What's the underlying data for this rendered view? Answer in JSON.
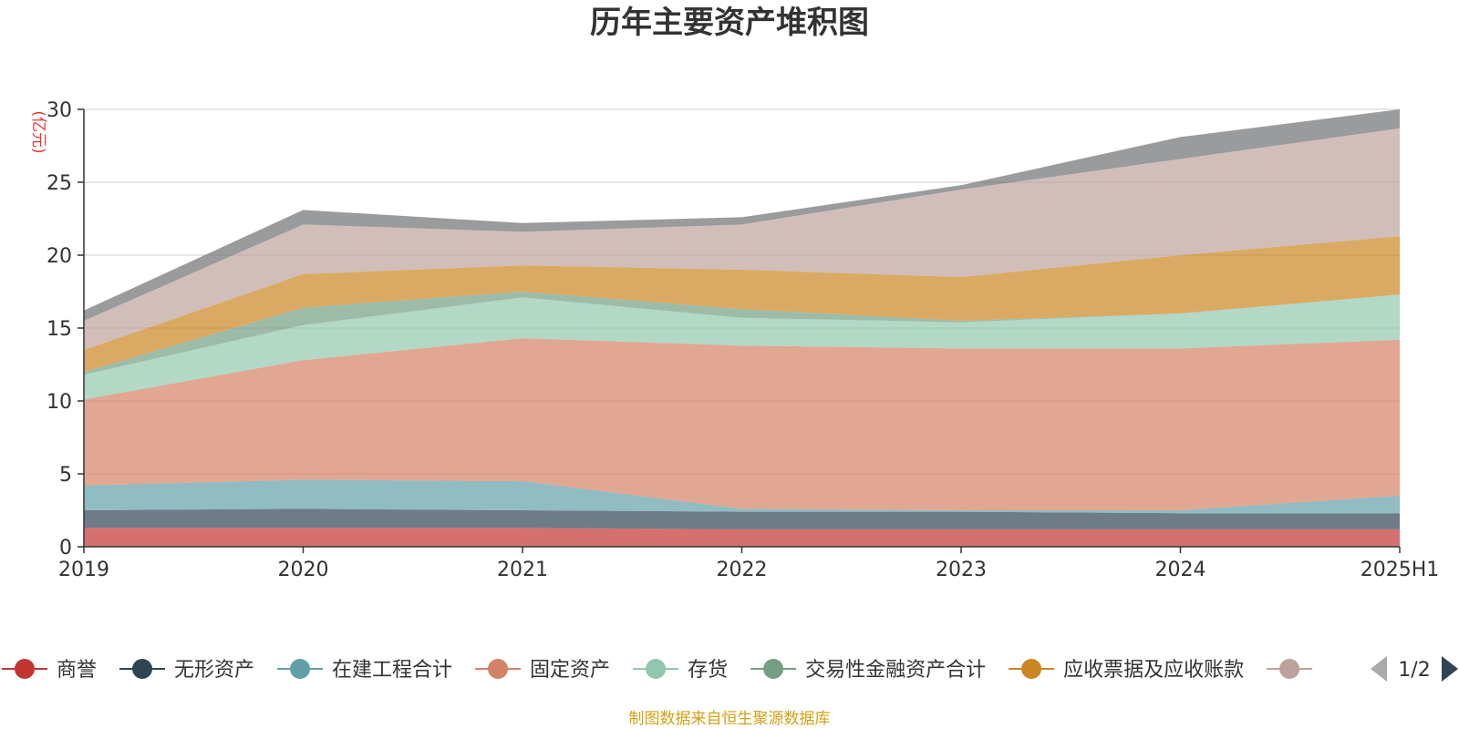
{
  "chart_data": {
    "type": "area",
    "stacked": true,
    "title": "历年主要资产堆积图",
    "unit": "(亿元)",
    "categories": [
      "2019",
      "2020",
      "2021",
      "2022",
      "2023",
      "2024",
      "2025H1"
    ],
    "ylim": [
      0,
      30
    ],
    "yticks": [
      0,
      5,
      10,
      15,
      20,
      25,
      30
    ],
    "grid": true,
    "legend_position": "bottom",
    "series": [
      {
        "name": "商誉",
        "color": "#c23531",
        "values": [
          1.3,
          1.3,
          1.3,
          1.2,
          1.2,
          1.2,
          1.2
        ]
      },
      {
        "name": "无形资产",
        "color": "#2f4554",
        "values": [
          1.2,
          1.3,
          1.2,
          1.2,
          1.2,
          1.1,
          1.1
        ]
      },
      {
        "name": "在建工程合计",
        "color": "#61a0a8",
        "values": [
          1.7,
          2.0,
          2.0,
          0.2,
          0.1,
          0.2,
          1.2
        ]
      },
      {
        "name": "固定资产",
        "color": "#d48265",
        "values": [
          5.9,
          8.2,
          9.8,
          11.2,
          11.1,
          11.1,
          10.7
        ]
      },
      {
        "name": "存货",
        "color": "#91c7ae",
        "values": [
          1.7,
          2.4,
          2.8,
          1.9,
          1.8,
          2.4,
          3.1
        ]
      },
      {
        "name": "交易性金融资产合计",
        "color": "#749f83",
        "values": [
          0.2,
          1.2,
          0.4,
          0.6,
          0.1,
          0.0,
          0.0
        ]
      },
      {
        "name": "应收票据及应收账款",
        "color": "#ca8622",
        "values": [
          1.5,
          2.3,
          1.8,
          2.7,
          3.0,
          4.0,
          4.0
        ]
      },
      {
        "name": "",
        "color": "#bda29a",
        "values": [
          2.0,
          3.4,
          2.3,
          3.1,
          6.0,
          6.6,
          7.4
        ]
      },
      {
        "name": "",
        "color": "#6e7074",
        "values": [
          0.7,
          1.0,
          0.6,
          0.5,
          0.3,
          1.5,
          1.3
        ]
      }
    ],
    "legend_pager": "1/2",
    "source_note": "制图数据来自恒生聚源数据库"
  }
}
